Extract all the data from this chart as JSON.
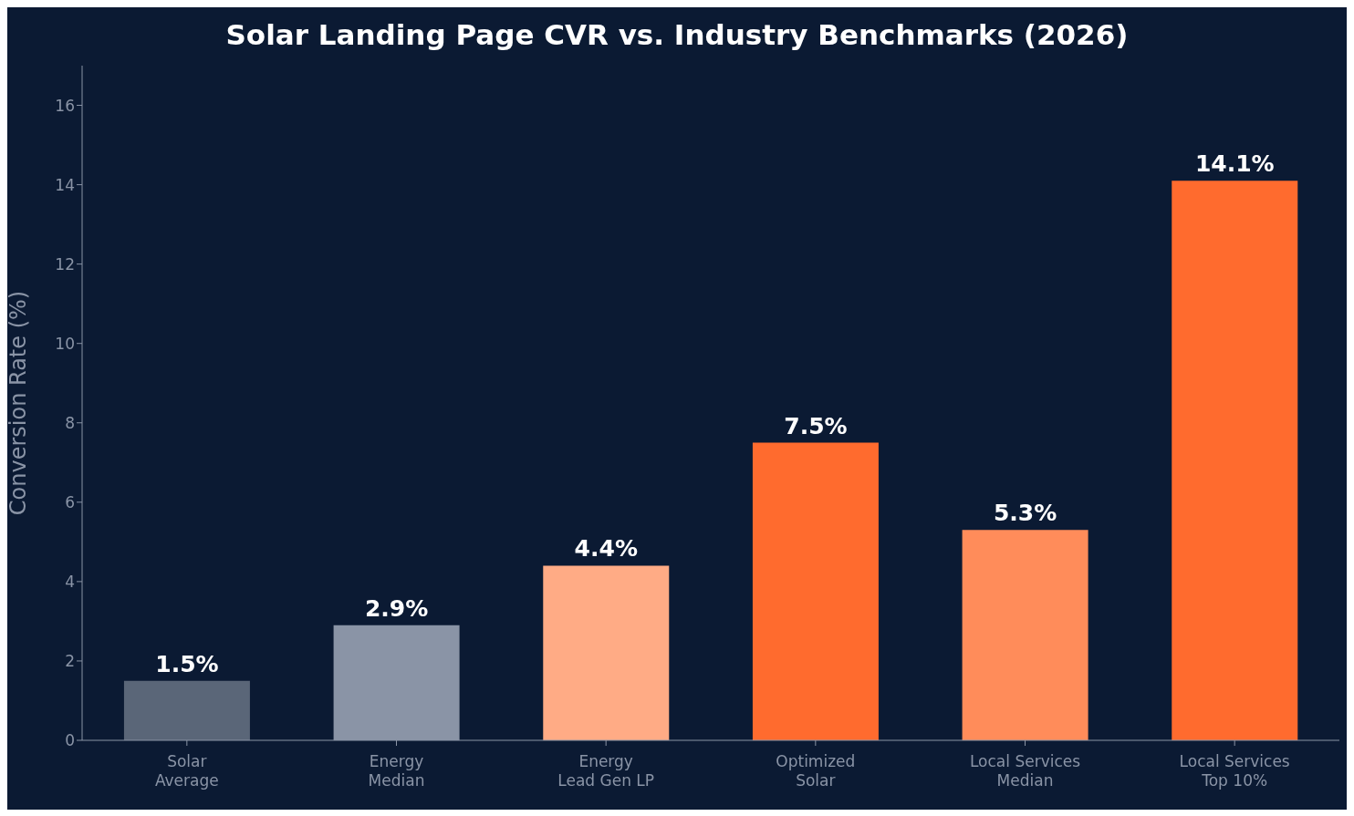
{
  "chart_data": {
    "type": "bar",
    "title": "Solar Landing Page CVR vs. Industry Benchmarks (2026)",
    "ylabel": "Conversion Rate (%)",
    "categories": [
      "Solar\nAverage",
      "Energy\nMedian",
      "Energy\nLead Gen LP",
      "Optimized\nSolar",
      "Local Services\nMedian",
      "Local Services\nTop 10%"
    ],
    "values": [
      1.5,
      2.9,
      4.4,
      7.5,
      5.3,
      14.1
    ],
    "colors": [
      "#5a6678",
      "#8a94a6",
      "#ffab85",
      "#ff6b2e",
      "#ff8c5a",
      "#ff6b2e"
    ],
    "value_labels": [
      "1.5%",
      "2.9%",
      "4.4%",
      "7.5%",
      "5.3%",
      "14.1%"
    ],
    "ylim": [
      0,
      17
    ],
    "yticks": [
      0,
      2,
      4,
      6,
      8,
      10,
      12,
      14,
      16
    ]
  }
}
